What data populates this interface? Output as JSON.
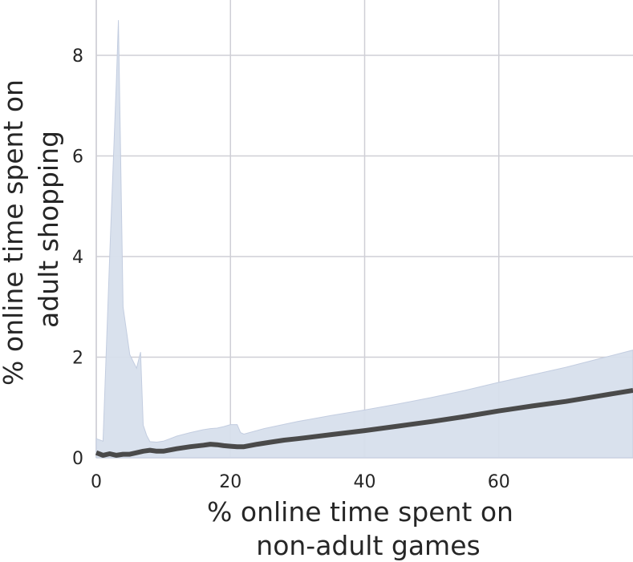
{
  "chart_data": {
    "type": "line",
    "title": "",
    "xlabel_lines": [
      "% online time spent on",
      "non-adult games"
    ],
    "ylabel_lines": [
      "% online time spent on",
      "adult shopping"
    ],
    "xlim": [
      0,
      80
    ],
    "ylim": [
      0,
      9.1
    ],
    "x_ticks": [
      0,
      20,
      40,
      60
    ],
    "x_tick_labels": [
      "0",
      "20",
      "40",
      "60"
    ],
    "y_ticks": [
      0,
      2,
      4,
      6,
      8
    ],
    "y_tick_labels": [
      "0",
      "2",
      "4",
      "6",
      "8"
    ],
    "grid": true,
    "colors": {
      "line": "#4a4a4a",
      "band": "#d7dfec",
      "band_edge": "#c3cde0",
      "grid": "#cfcfd6",
      "text": "#262626"
    },
    "series": [
      {
        "x": [
          0,
          1,
          2,
          3,
          4,
          5,
          6,
          7,
          8,
          9,
          10,
          12,
          14,
          16,
          17,
          18,
          19,
          20,
          21,
          22,
          24,
          26,
          28,
          30,
          35,
          40,
          45,
          50,
          55,
          60,
          65,
          70,
          75,
          80
        ],
        "values": [
          0.1,
          0.05,
          0.08,
          0.05,
          0.07,
          0.07,
          0.1,
          0.13,
          0.15,
          0.13,
          0.13,
          0.18,
          0.22,
          0.25,
          0.27,
          0.26,
          0.24,
          0.23,
          0.22,
          0.22,
          0.27,
          0.31,
          0.35,
          0.38,
          0.46,
          0.54,
          0.63,
          0.72,
          0.82,
          0.93,
          1.03,
          1.12,
          1.23,
          1.34
        ]
      }
    ],
    "confidence_band": {
      "x": [
        0,
        1,
        2,
        3,
        3.3,
        4,
        5,
        6,
        6.6,
        7,
        7.5,
        8,
        9,
        10,
        11,
        12,
        14,
        16,
        17,
        18,
        19,
        20,
        21,
        21.5,
        22,
        25,
        30,
        35,
        40,
        45,
        50,
        55,
        60,
        65,
        70,
        75,
        80
      ],
      "upper": [
        0.38,
        0.33,
        4.0,
        7.5,
        8.7,
        3.0,
        2.05,
        1.78,
        2.1,
        0.65,
        0.45,
        0.32,
        0.31,
        0.33,
        0.38,
        0.43,
        0.5,
        0.56,
        0.58,
        0.59,
        0.62,
        0.66,
        0.66,
        0.5,
        0.47,
        0.58,
        0.72,
        0.84,
        0.95,
        1.07,
        1.2,
        1.34,
        1.5,
        1.65,
        1.8,
        1.97,
        2.14
      ],
      "lower": [
        0,
        0,
        0,
        0,
        0,
        0,
        0,
        0,
        0,
        0,
        0,
        0,
        0,
        0,
        0,
        0,
        0,
        0,
        0,
        0,
        0,
        0,
        0,
        0,
        0,
        0,
        0,
        0,
        0,
        0,
        0,
        0,
        0,
        0,
        0,
        0,
        0
      ]
    }
  }
}
